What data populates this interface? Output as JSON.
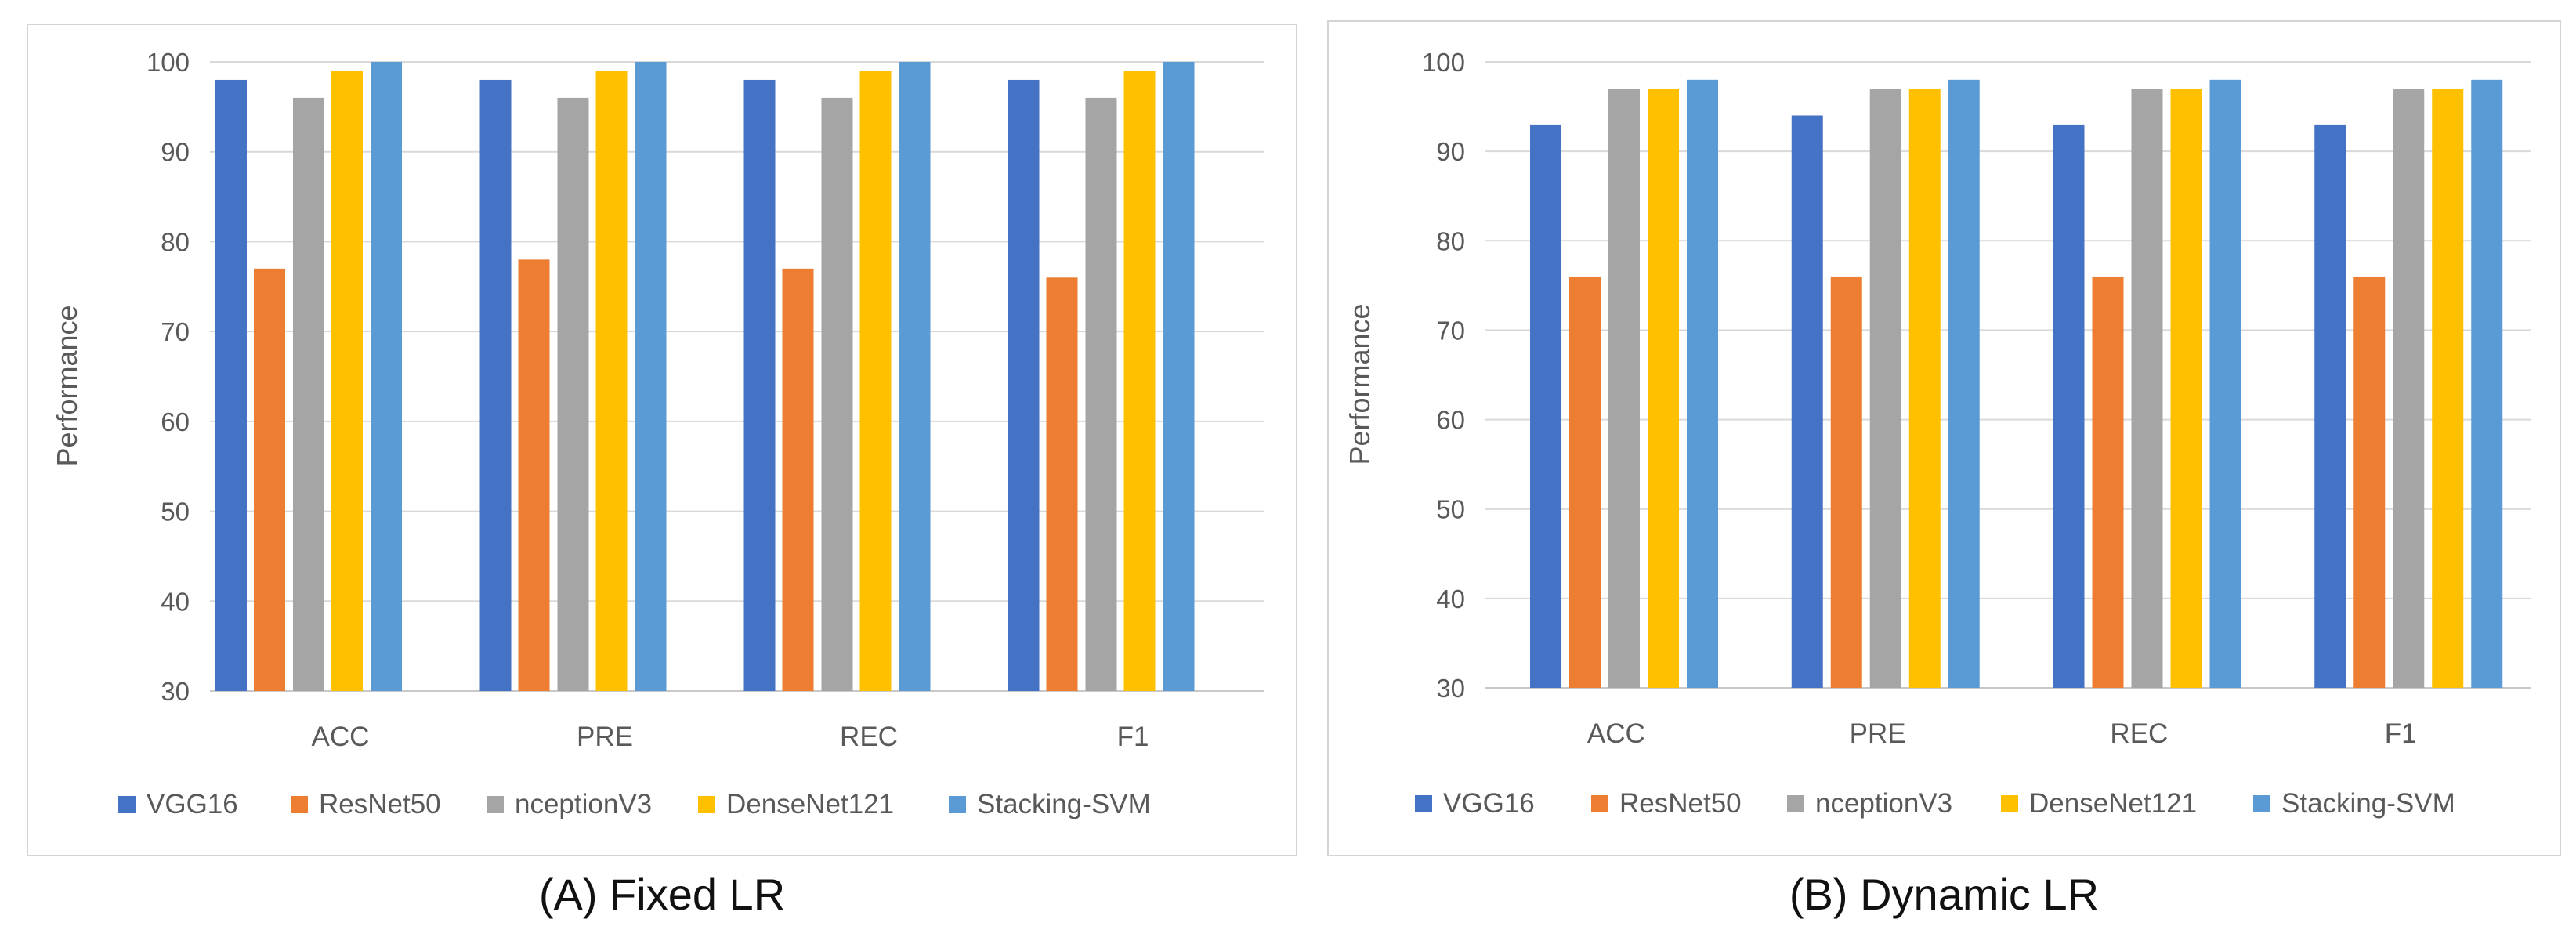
{
  "colors": {
    "VGG16": "#4472c4",
    "ResNet50": "#ed7d31",
    "nceptionV3": "#a5a5a5",
    "DenseNet121": "#ffc000",
    "Stacking-SVM": "#5b9bd5",
    "gridline": "#d9d9d9",
    "tick_text": "#595959"
  },
  "chart_data": [
    {
      "type": "bar",
      "caption": "(A) Fixed LR",
      "ylabel": "Performance",
      "ylim": [
        30,
        100
      ],
      "yticks": [
        30,
        40,
        50,
        60,
        70,
        80,
        90,
        100
      ],
      "grid": true,
      "legend_position": "bottom",
      "categories": [
        "ACC",
        "PRE",
        "REC",
        "F1"
      ],
      "series": [
        {
          "name": "VGG16",
          "values": [
            98,
            98,
            98,
            98
          ]
        },
        {
          "name": "ResNet50",
          "values": [
            77,
            78,
            77,
            76
          ]
        },
        {
          "name": "nceptionV3",
          "values": [
            96,
            96,
            96,
            96
          ]
        },
        {
          "name": "DenseNet121",
          "values": [
            99,
            99,
            99,
            99
          ]
        },
        {
          "name": "Stacking-SVM",
          "values": [
            100,
            100,
            100,
            100
          ]
        }
      ]
    },
    {
      "type": "bar",
      "caption": "(B) Dynamic LR",
      "ylabel": "Performance",
      "ylim": [
        30,
        100
      ],
      "yticks": [
        30,
        40,
        50,
        60,
        70,
        80,
        90,
        100
      ],
      "grid": true,
      "legend_position": "bottom",
      "categories": [
        "ACC",
        "PRE",
        "REC",
        "F1"
      ],
      "series": [
        {
          "name": "VGG16",
          "values": [
            93,
            94,
            93,
            93
          ]
        },
        {
          "name": "ResNet50",
          "values": [
            76,
            76,
            76,
            76
          ]
        },
        {
          "name": "nceptionV3",
          "values": [
            97,
            97,
            97,
            97
          ]
        },
        {
          "name": "DenseNet121",
          "values": [
            97,
            97,
            97,
            97
          ]
        },
        {
          "name": "Stacking-SVM",
          "values": [
            98,
            98,
            98,
            98
          ]
        }
      ]
    }
  ]
}
